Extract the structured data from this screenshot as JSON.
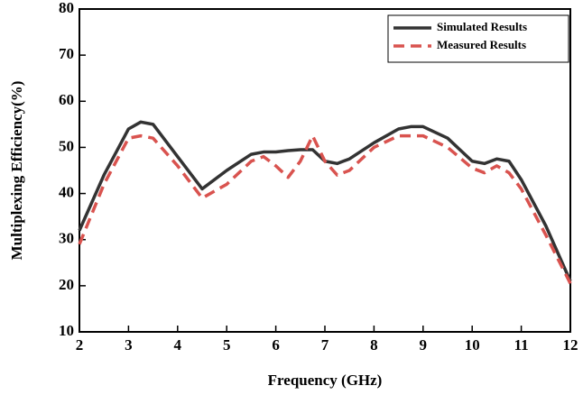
{
  "chart_data": {
    "type": "line",
    "x_label": "Frequency  (GHz)",
    "y_label": "Multiplexing Efficiency(%)",
    "x": [
      2,
      2.5,
      3,
      3.25,
      3.5,
      4,
      4.5,
      5,
      5.5,
      5.75,
      6,
      6.25,
      6.5,
      6.75,
      7,
      7.25,
      7.5,
      8,
      8.5,
      8.75,
      9,
      9.5,
      10,
      10.25,
      10.5,
      10.75,
      11,
      11.5,
      12
    ],
    "series": [
      {
        "name": "Simulated Results",
        "color": "#333333",
        "dash": false,
        "values": [
          32,
          44,
          54,
          55.5,
          55,
          48,
          41,
          45,
          48.5,
          49,
          49,
          49.3,
          49.5,
          49.5,
          47,
          46.5,
          47.5,
          51,
          54,
          54.5,
          54.5,
          52,
          47,
          46.5,
          47.5,
          47,
          43,
          33,
          21
        ]
      },
      {
        "name": "Measured Results",
        "color": "#d9534f",
        "dash": true,
        "values": [
          29,
          42,
          52,
          52.5,
          52,
          46,
          39,
          42,
          47,
          48,
          46,
          43.5,
          47,
          52.5,
          47,
          44,
          45,
          50,
          52.5,
          52.5,
          52.5,
          50,
          45.5,
          44.5,
          46,
          44.5,
          41,
          31,
          20.5
        ]
      }
    ],
    "xlim": [
      2,
      12
    ],
    "xticks": [
      2,
      3,
      4,
      5,
      6,
      7,
      8,
      9,
      10,
      11,
      12
    ],
    "ylim": [
      10,
      80
    ],
    "yticks": [
      10,
      20,
      30,
      40,
      50,
      60,
      70,
      80
    ],
    "legend": "top-right"
  }
}
